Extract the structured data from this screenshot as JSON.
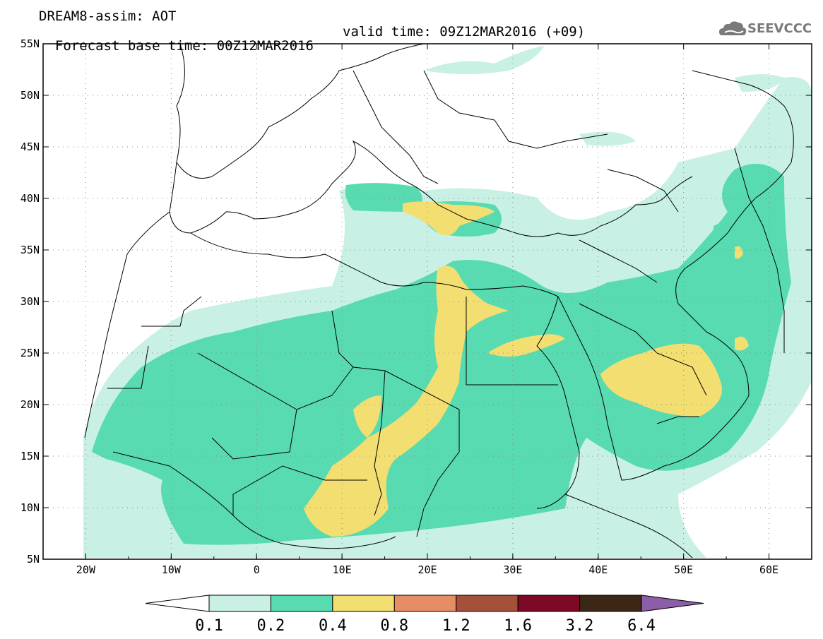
{
  "header": {
    "line1": "DREAM8-assim: AOT",
    "line2_base": "Forecast base time: 00Z12MAR2016",
    "line2_valid": "valid time: 09Z12MAR2016 (+09)"
  },
  "logo": {
    "text": "SEEVCCC",
    "icon": "cloud-logo-icon"
  },
  "map": {
    "lon_labels": [
      "20W",
      "10W",
      "0",
      "10E",
      "20E",
      "30E",
      "40E",
      "50E",
      "60E"
    ],
    "lon_values": [
      -20,
      -10,
      0,
      10,
      20,
      30,
      40,
      50,
      60
    ],
    "lat_labels": [
      "55N",
      "50N",
      "45N",
      "40N",
      "35N",
      "30N",
      "25N",
      "20N",
      "15N",
      "10N",
      "5N"
    ],
    "lat_values": [
      55,
      50,
      45,
      40,
      35,
      30,
      25,
      20,
      15,
      10,
      5
    ],
    "lon_range": [
      -25,
      65
    ],
    "lat_range": [
      5,
      55
    ]
  },
  "colorbar": {
    "bins": [
      {
        "color": "#c8f0e4"
      },
      {
        "color": "#58dbb1"
      },
      {
        "color": "#f3de71"
      },
      {
        "color": "#e58d64"
      },
      {
        "color": "#a5503b"
      },
      {
        "color": "#7c0a26"
      },
      {
        "color": "#3c2616"
      }
    ],
    "under_color": "#ffffff",
    "over_color": "#8a5fa8",
    "labels": [
      "0.1",
      "0.2",
      "0.4",
      "0.8",
      "1.2",
      "1.6",
      "3.2",
      "6.4"
    ]
  }
}
